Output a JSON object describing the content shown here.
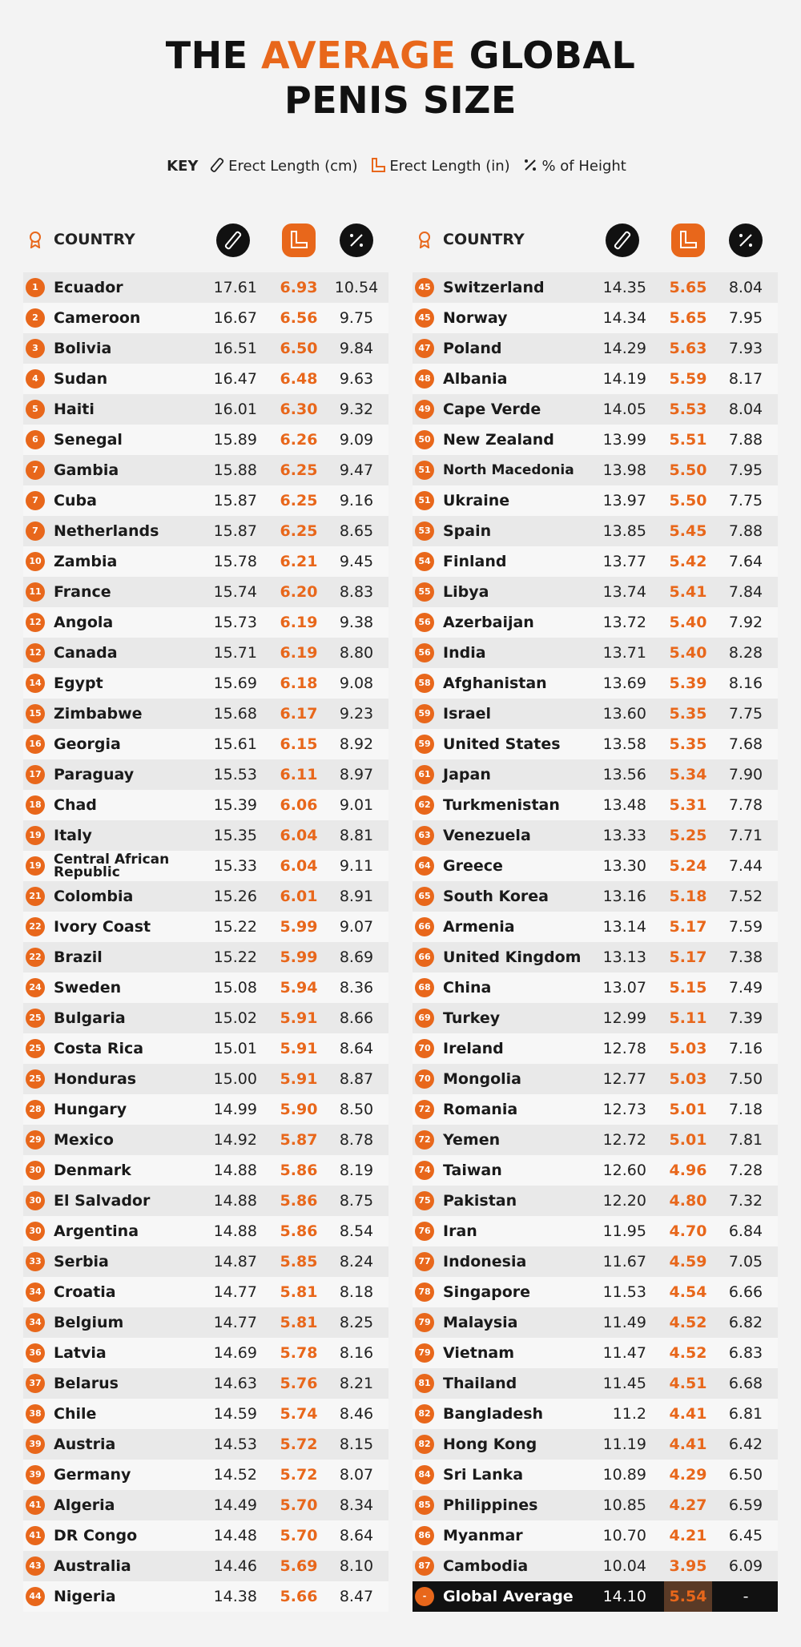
{
  "title": {
    "line1_a": "THE",
    "line1_b": "AVERAGE",
    "line1_c": "GLOBAL",
    "line2": "PENIS SIZE"
  },
  "key": {
    "label": "KEY",
    "items": [
      "Erect Length (cm)",
      "Erect Length (in)",
      "% of Height"
    ]
  },
  "tables": [
    {
      "header": "COUNTRY",
      "rows": [
        [
          "1",
          "Ecuador",
          "17.61",
          "6.93",
          "10.54"
        ],
        [
          "2",
          "Cameroon",
          "16.67",
          "6.56",
          "9.75"
        ],
        [
          "3",
          "Bolivia",
          "16.51",
          "6.50",
          "9.84"
        ],
        [
          "4",
          "Sudan",
          "16.47",
          "6.48",
          "9.63"
        ],
        [
          "5",
          "Haiti",
          "16.01",
          "6.30",
          "9.32"
        ],
        [
          "6",
          "Senegal",
          "15.89",
          "6.26",
          "9.09"
        ],
        [
          "7",
          "Gambia",
          "15.88",
          "6.25",
          "9.47"
        ],
        [
          "7",
          "Cuba",
          "15.87",
          "6.25",
          "9.16"
        ],
        [
          "7",
          "Netherlands",
          "15.87",
          "6.25",
          "8.65"
        ],
        [
          "10",
          "Zambia",
          "15.78",
          "6.21",
          "9.45"
        ],
        [
          "11",
          "France",
          "15.74",
          "6.20",
          "8.83"
        ],
        [
          "12",
          "Angola",
          "15.73",
          "6.19",
          "9.38"
        ],
        [
          "12",
          "Canada",
          "15.71",
          "6.19",
          "8.80"
        ],
        [
          "14",
          "Egypt",
          "15.69",
          "6.18",
          "9.08"
        ],
        [
          "15",
          "Zimbabwe",
          "15.68",
          "6.17",
          "9.23"
        ],
        [
          "16",
          "Georgia",
          "15.61",
          "6.15",
          "8.92"
        ],
        [
          "17",
          "Paraguay",
          "15.53",
          "6.11",
          "8.97"
        ],
        [
          "18",
          "Chad",
          "15.39",
          "6.06",
          "9.01"
        ],
        [
          "19",
          "Italy",
          "15.35",
          "6.04",
          "8.81"
        ],
        [
          "19",
          "Central African Republic",
          "15.33",
          "6.04",
          "9.11"
        ],
        [
          "21",
          "Colombia",
          "15.26",
          "6.01",
          "8.91"
        ],
        [
          "22",
          "Ivory Coast",
          "15.22",
          "5.99",
          "9.07"
        ],
        [
          "22",
          "Brazil",
          "15.22",
          "5.99",
          "8.69"
        ],
        [
          "24",
          "Sweden",
          "15.08",
          "5.94",
          "8.36"
        ],
        [
          "25",
          "Bulgaria",
          "15.02",
          "5.91",
          "8.66"
        ],
        [
          "25",
          "Costa Rica",
          "15.01",
          "5.91",
          "8.64"
        ],
        [
          "25",
          "Honduras",
          "15.00",
          "5.91",
          "8.87"
        ],
        [
          "28",
          "Hungary",
          "14.99",
          "5.90",
          "8.50"
        ],
        [
          "29",
          "Mexico",
          "14.92",
          "5.87",
          "8.78"
        ],
        [
          "30",
          "Denmark",
          "14.88",
          "5.86",
          "8.19"
        ],
        [
          "30",
          "El Salvador",
          "14.88",
          "5.86",
          "8.75"
        ],
        [
          "30",
          "Argentina",
          "14.88",
          "5.86",
          "8.54"
        ],
        [
          "33",
          "Serbia",
          "14.87",
          "5.85",
          "8.24"
        ],
        [
          "34",
          "Croatia",
          "14.77",
          "5.81",
          "8.18"
        ],
        [
          "34",
          "Belgium",
          "14.77",
          "5.81",
          "8.25"
        ],
        [
          "36",
          "Latvia",
          "14.69",
          "5.78",
          "8.16"
        ],
        [
          "37",
          "Belarus",
          "14.63",
          "5.76",
          "8.21"
        ],
        [
          "38",
          "Chile",
          "14.59",
          "5.74",
          "8.46"
        ],
        [
          "39",
          "Austria",
          "14.53",
          "5.72",
          "8.15"
        ],
        [
          "39",
          "Germany",
          "14.52",
          "5.72",
          "8.07"
        ],
        [
          "41",
          "Algeria",
          "14.49",
          "5.70",
          "8.34"
        ],
        [
          "41",
          "DR Congo",
          "14.48",
          "5.70",
          "8.64"
        ],
        [
          "43",
          "Australia",
          "14.46",
          "5.69",
          "8.10"
        ],
        [
          "44",
          "Nigeria",
          "14.38",
          "5.66",
          "8.47"
        ]
      ]
    },
    {
      "header": "COUNTRY",
      "rows": [
        [
          "45",
          "Switzerland",
          "14.35",
          "5.65",
          "8.04"
        ],
        [
          "45",
          "Norway",
          "14.34",
          "5.65",
          "7.95"
        ],
        [
          "47",
          "Poland",
          "14.29",
          "5.63",
          "7.93"
        ],
        [
          "48",
          "Albania",
          "14.19",
          "5.59",
          "8.17"
        ],
        [
          "49",
          "Cape Verde",
          "14.05",
          "5.53",
          "8.04"
        ],
        [
          "50",
          "New Zealand",
          "13.99",
          "5.51",
          "7.88"
        ],
        [
          "51",
          "North Macedonia",
          "13.98",
          "5.50",
          "7.95"
        ],
        [
          "51",
          "Ukraine",
          "13.97",
          "5.50",
          "7.75"
        ],
        [
          "53",
          "Spain",
          "13.85",
          "5.45",
          "7.88"
        ],
        [
          "54",
          "Finland",
          "13.77",
          "5.42",
          "7.64"
        ],
        [
          "55",
          "Libya",
          "13.74",
          "5.41",
          "7.84"
        ],
        [
          "56",
          "Azerbaijan",
          "13.72",
          "5.40",
          "7.92"
        ],
        [
          "56",
          "India",
          "13.71",
          "5.40",
          "8.28"
        ],
        [
          "58",
          "Afghanistan",
          "13.69",
          "5.39",
          "8.16"
        ],
        [
          "59",
          "Israel",
          "13.60",
          "5.35",
          "7.75"
        ],
        [
          "59",
          "United States",
          "13.58",
          "5.35",
          "7.68"
        ],
        [
          "61",
          "Japan",
          "13.56",
          "5.34",
          "7.90"
        ],
        [
          "62",
          "Turkmenistan",
          "13.48",
          "5.31",
          "7.78"
        ],
        [
          "63",
          "Venezuela",
          "13.33",
          "5.25",
          "7.71"
        ],
        [
          "64",
          "Greece",
          "13.30",
          "5.24",
          "7.44"
        ],
        [
          "65",
          "South Korea",
          "13.16",
          "5.18",
          "7.52"
        ],
        [
          "66",
          "Armenia",
          "13.14",
          "5.17",
          "7.59"
        ],
        [
          "66",
          "United Kingdom",
          "13.13",
          "5.17",
          "7.38"
        ],
        [
          "68",
          "China",
          "13.07",
          "5.15",
          "7.49"
        ],
        [
          "69",
          "Turkey",
          "12.99",
          "5.11",
          "7.39"
        ],
        [
          "70",
          "Ireland",
          "12.78",
          "5.03",
          "7.16"
        ],
        [
          "70",
          "Mongolia",
          "12.77",
          "5.03",
          "7.50"
        ],
        [
          "72",
          "Romania",
          "12.73",
          "5.01",
          "7.18"
        ],
        [
          "72",
          "Yemen",
          "12.72",
          "5.01",
          "7.81"
        ],
        [
          "74",
          "Taiwan",
          "12.60",
          "4.96",
          "7.28"
        ],
        [
          "75",
          "Pakistan",
          "12.20",
          "4.80",
          "7.32"
        ],
        [
          "76",
          "Iran",
          "11.95",
          "4.70",
          "6.84"
        ],
        [
          "77",
          "Indonesia",
          "11.67",
          "4.59",
          "7.05"
        ],
        [
          "78",
          "Singapore",
          "11.53",
          "4.54",
          "6.66"
        ],
        [
          "79",
          "Malaysia",
          "11.49",
          "4.52",
          "6.82"
        ],
        [
          "79",
          "Vietnam",
          "11.47",
          "4.52",
          "6.83"
        ],
        [
          "81",
          "Thailand",
          "11.45",
          "4.51",
          "6.68"
        ],
        [
          "82",
          "Bangladesh",
          "11.2",
          "4.41",
          "6.81"
        ],
        [
          "82",
          "Hong Kong",
          "11.19",
          "4.41",
          "6.42"
        ],
        [
          "84",
          "Sri Lanka",
          "10.89",
          "4.29",
          "6.50"
        ],
        [
          "85",
          "Philippines",
          "10.85",
          "4.27",
          "6.59"
        ],
        [
          "86",
          "Myanmar",
          "10.70",
          "4.21",
          "6.45"
        ],
        [
          "87",
          "Cambodia",
          "10.04",
          "3.95",
          "6.09"
        ]
      ]
    }
  ],
  "global_average": [
    "-",
    "Global Average",
    "14.10",
    "5.54",
    "-"
  ]
}
